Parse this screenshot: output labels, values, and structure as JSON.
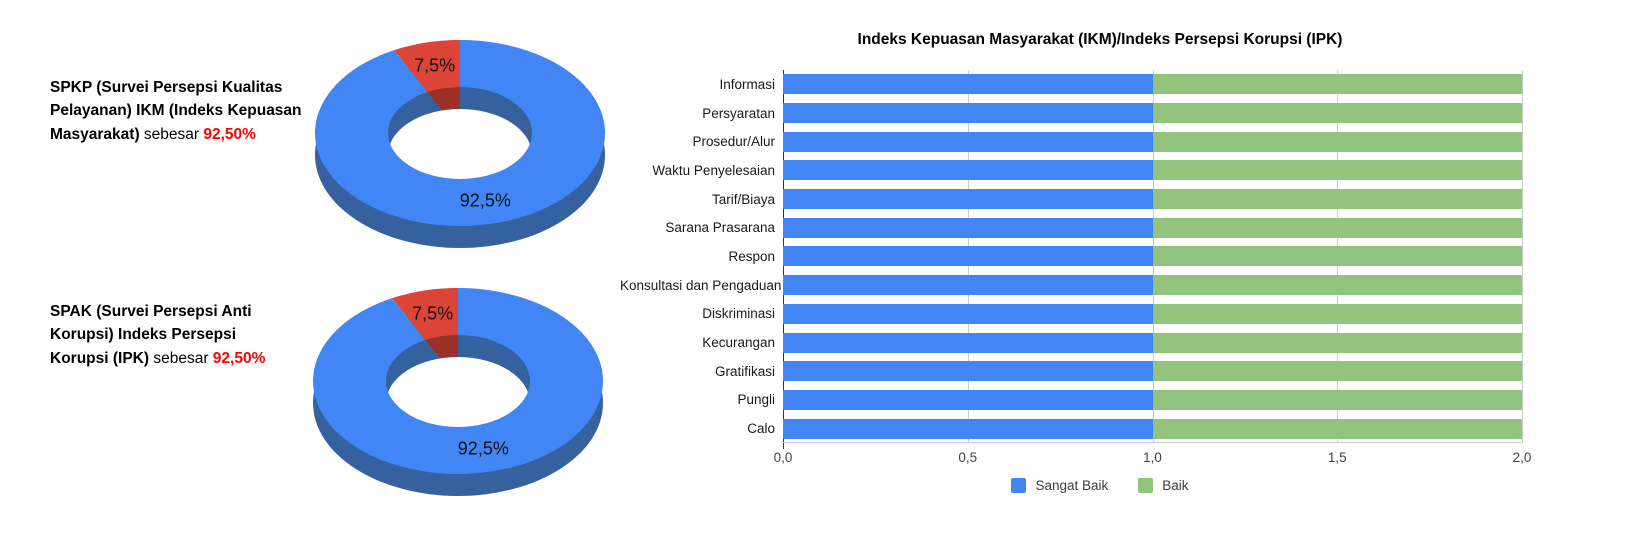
{
  "left_panel": {
    "value_color": "#ff0000",
    "blocks": [
      {
        "name": "spkp-stat",
        "segments": [
          {
            "text": "SPKP (Survei Persepsi Kualitas Pelayanan) IKM (Indeks Kepuasan Masyarakat)",
            "style": "bold"
          },
          {
            "text": " sebesar ",
            "style": "normal"
          },
          {
            "text": "92,50%",
            "style": "value"
          }
        ]
      },
      {
        "name": "spak-stat",
        "segments": [
          {
            "text": "SPAK (Survei Persepsi Anti Korupsi) Indeks Persepsi Korupsi (IPK)",
            "style": "bold"
          },
          {
            "text": " sebesar ",
            "style": "normal"
          },
          {
            "text": "92,50%",
            "style": "value"
          }
        ]
      }
    ]
  },
  "chart_data": [
    {
      "type": "pie",
      "name": "spkp-ikm-donut",
      "style": "3d-donut",
      "hole": true,
      "slices": [
        {
          "label": "92,5%",
          "value": 92.5,
          "color": "#4285f4",
          "side_color": "#35629f"
        },
        {
          "label": "7,5%",
          "value": 7.5,
          "color": "#dc4437",
          "side_color": "#9a3027"
        }
      ]
    },
    {
      "type": "pie",
      "name": "spak-ipk-donut",
      "style": "3d-donut",
      "hole": true,
      "slices": [
        {
          "label": "92,5%",
          "value": 92.5,
          "color": "#4285f4",
          "side_color": "#35629f"
        },
        {
          "label": "7,5%",
          "value": 7.5,
          "color": "#dc4437",
          "side_color": "#9a3027"
        }
      ]
    },
    {
      "type": "bar",
      "orientation": "horizontal",
      "stacked": true,
      "title": "Indeks Kepuasan Masyarakat (IKM)/Indeks Persepsi Korupsi (IPK)",
      "categories": [
        "Informasi",
        "Persyaratan",
        "Prosedur/Alur",
        "Waktu Penyelesaian",
        "Tarif/Biaya",
        "Sarana Prasarana",
        "Respon",
        "Konsultasi dan Pengaduan",
        "Diskriminasi",
        "Kecurangan",
        "Gratifikasi",
        "Pungli",
        "Calo"
      ],
      "series": [
        {
          "name": "Sangat Baik",
          "color": "#4285f4",
          "values": [
            1,
            1,
            1,
            1,
            1,
            1,
            1,
            1,
            1,
            1,
            1,
            1,
            1
          ]
        },
        {
          "name": "Baik",
          "color": "#93c47d",
          "values": [
            1,
            1,
            1,
            1,
            1,
            1,
            1,
            1,
            1,
            1,
            1,
            1,
            1
          ]
        }
      ],
      "xlim": [
        0,
        2
      ],
      "xticks": [
        {
          "label": "0,0",
          "value": 0
        },
        {
          "label": "0,5",
          "value": 0.5
        },
        {
          "label": "1,0",
          "value": 1
        },
        {
          "label": "1,5",
          "value": 1.5
        },
        {
          "label": "2,0",
          "value": 2
        }
      ],
      "grid": true,
      "legend_position": "bottom"
    }
  ]
}
